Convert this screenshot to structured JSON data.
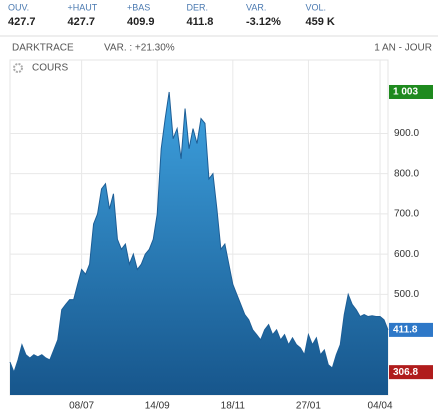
{
  "quote": [
    {
      "label": "OUV.",
      "value": "427.7"
    },
    {
      "label": "+HAUT",
      "value": "427.7"
    },
    {
      "label": "+BAS",
      "value": "409.9"
    },
    {
      "label": "DER.",
      "value": "411.8"
    },
    {
      "label": "VAR.",
      "value": "-3.12%",
      "color": "#e0202f"
    },
    {
      "label": "VOL.",
      "value": "459 K"
    }
  ],
  "chart_data": {
    "type": "area",
    "name": "DARKTRACE",
    "variation": "VAR. : +21.30%",
    "period": "1 AN - JOUR",
    "legend": "COURS",
    "color": "#2b86c9",
    "line_color": "#1d5e96",
    "categories": [
      null,
      null,
      null,
      null,
      null,
      null,
      null,
      null,
      null,
      null,
      null,
      null,
      null,
      null,
      null,
      null,
      null,
      null,
      "08/07",
      null,
      null,
      null,
      null,
      null,
      null,
      null,
      null,
      null,
      null,
      null,
      null,
      null,
      null,
      null,
      null,
      null,
      null,
      "14/09",
      null,
      null,
      null,
      null,
      null,
      null,
      null,
      null,
      null,
      null,
      null,
      null,
      null,
      null,
      null,
      null,
      null,
      null,
      "18/11",
      null,
      null,
      null,
      null,
      null,
      null,
      null,
      null,
      null,
      null,
      null,
      null,
      null,
      null,
      null,
      null,
      null,
      null,
      "27/01",
      null,
      null,
      null,
      null,
      null,
      null,
      null,
      null,
      null,
      null,
      null,
      null,
      null,
      null,
      null,
      null,
      null,
      "04/04",
      null,
      null
    ],
    "values": [
      332,
      306.8,
      337,
      375,
      350,
      342,
      350,
      345,
      350,
      342,
      337,
      362,
      387,
      462,
      475,
      487,
      487,
      525,
      562,
      550,
      575,
      675,
      700,
      762,
      775,
      712,
      750,
      637,
      612,
      625,
      575,
      600,
      562,
      575,
      600,
      612,
      637,
      700,
      862,
      937,
      1003,
      887,
      912,
      837,
      962,
      862,
      912,
      875,
      937,
      925,
      787,
      800,
      712,
      612,
      625,
      575,
      525,
      500,
      475,
      450,
      437,
      412,
      400,
      387,
      412,
      425,
      400,
      412,
      387,
      400,
      375,
      392,
      375,
      367,
      350,
      400,
      375,
      392,
      350,
      362,
      325,
      317,
      350,
      375,
      450,
      500,
      475,
      462,
      445,
      450,
      445,
      447,
      445,
      445,
      437,
      411.8
    ],
    "ylim": [
      250,
      1082.5
    ],
    "yticks": [
      {
        "value": 500,
        "label": "500.0"
      },
      {
        "value": 600,
        "label": "600.0"
      },
      {
        "value": 700,
        "label": "700.0"
      },
      {
        "value": 800,
        "label": "800.0"
      },
      {
        "value": 900,
        "label": "900.0"
      }
    ],
    "markers": [
      {
        "value": 1003,
        "label": "1 003",
        "color": "#1e8a1e"
      },
      {
        "value": 411.8,
        "label": "411.8",
        "color": "#2e78c8"
      },
      {
        "value": 306.8,
        "label": "306.8",
        "color": "#b01c1c"
      }
    ],
    "grid": true
  }
}
